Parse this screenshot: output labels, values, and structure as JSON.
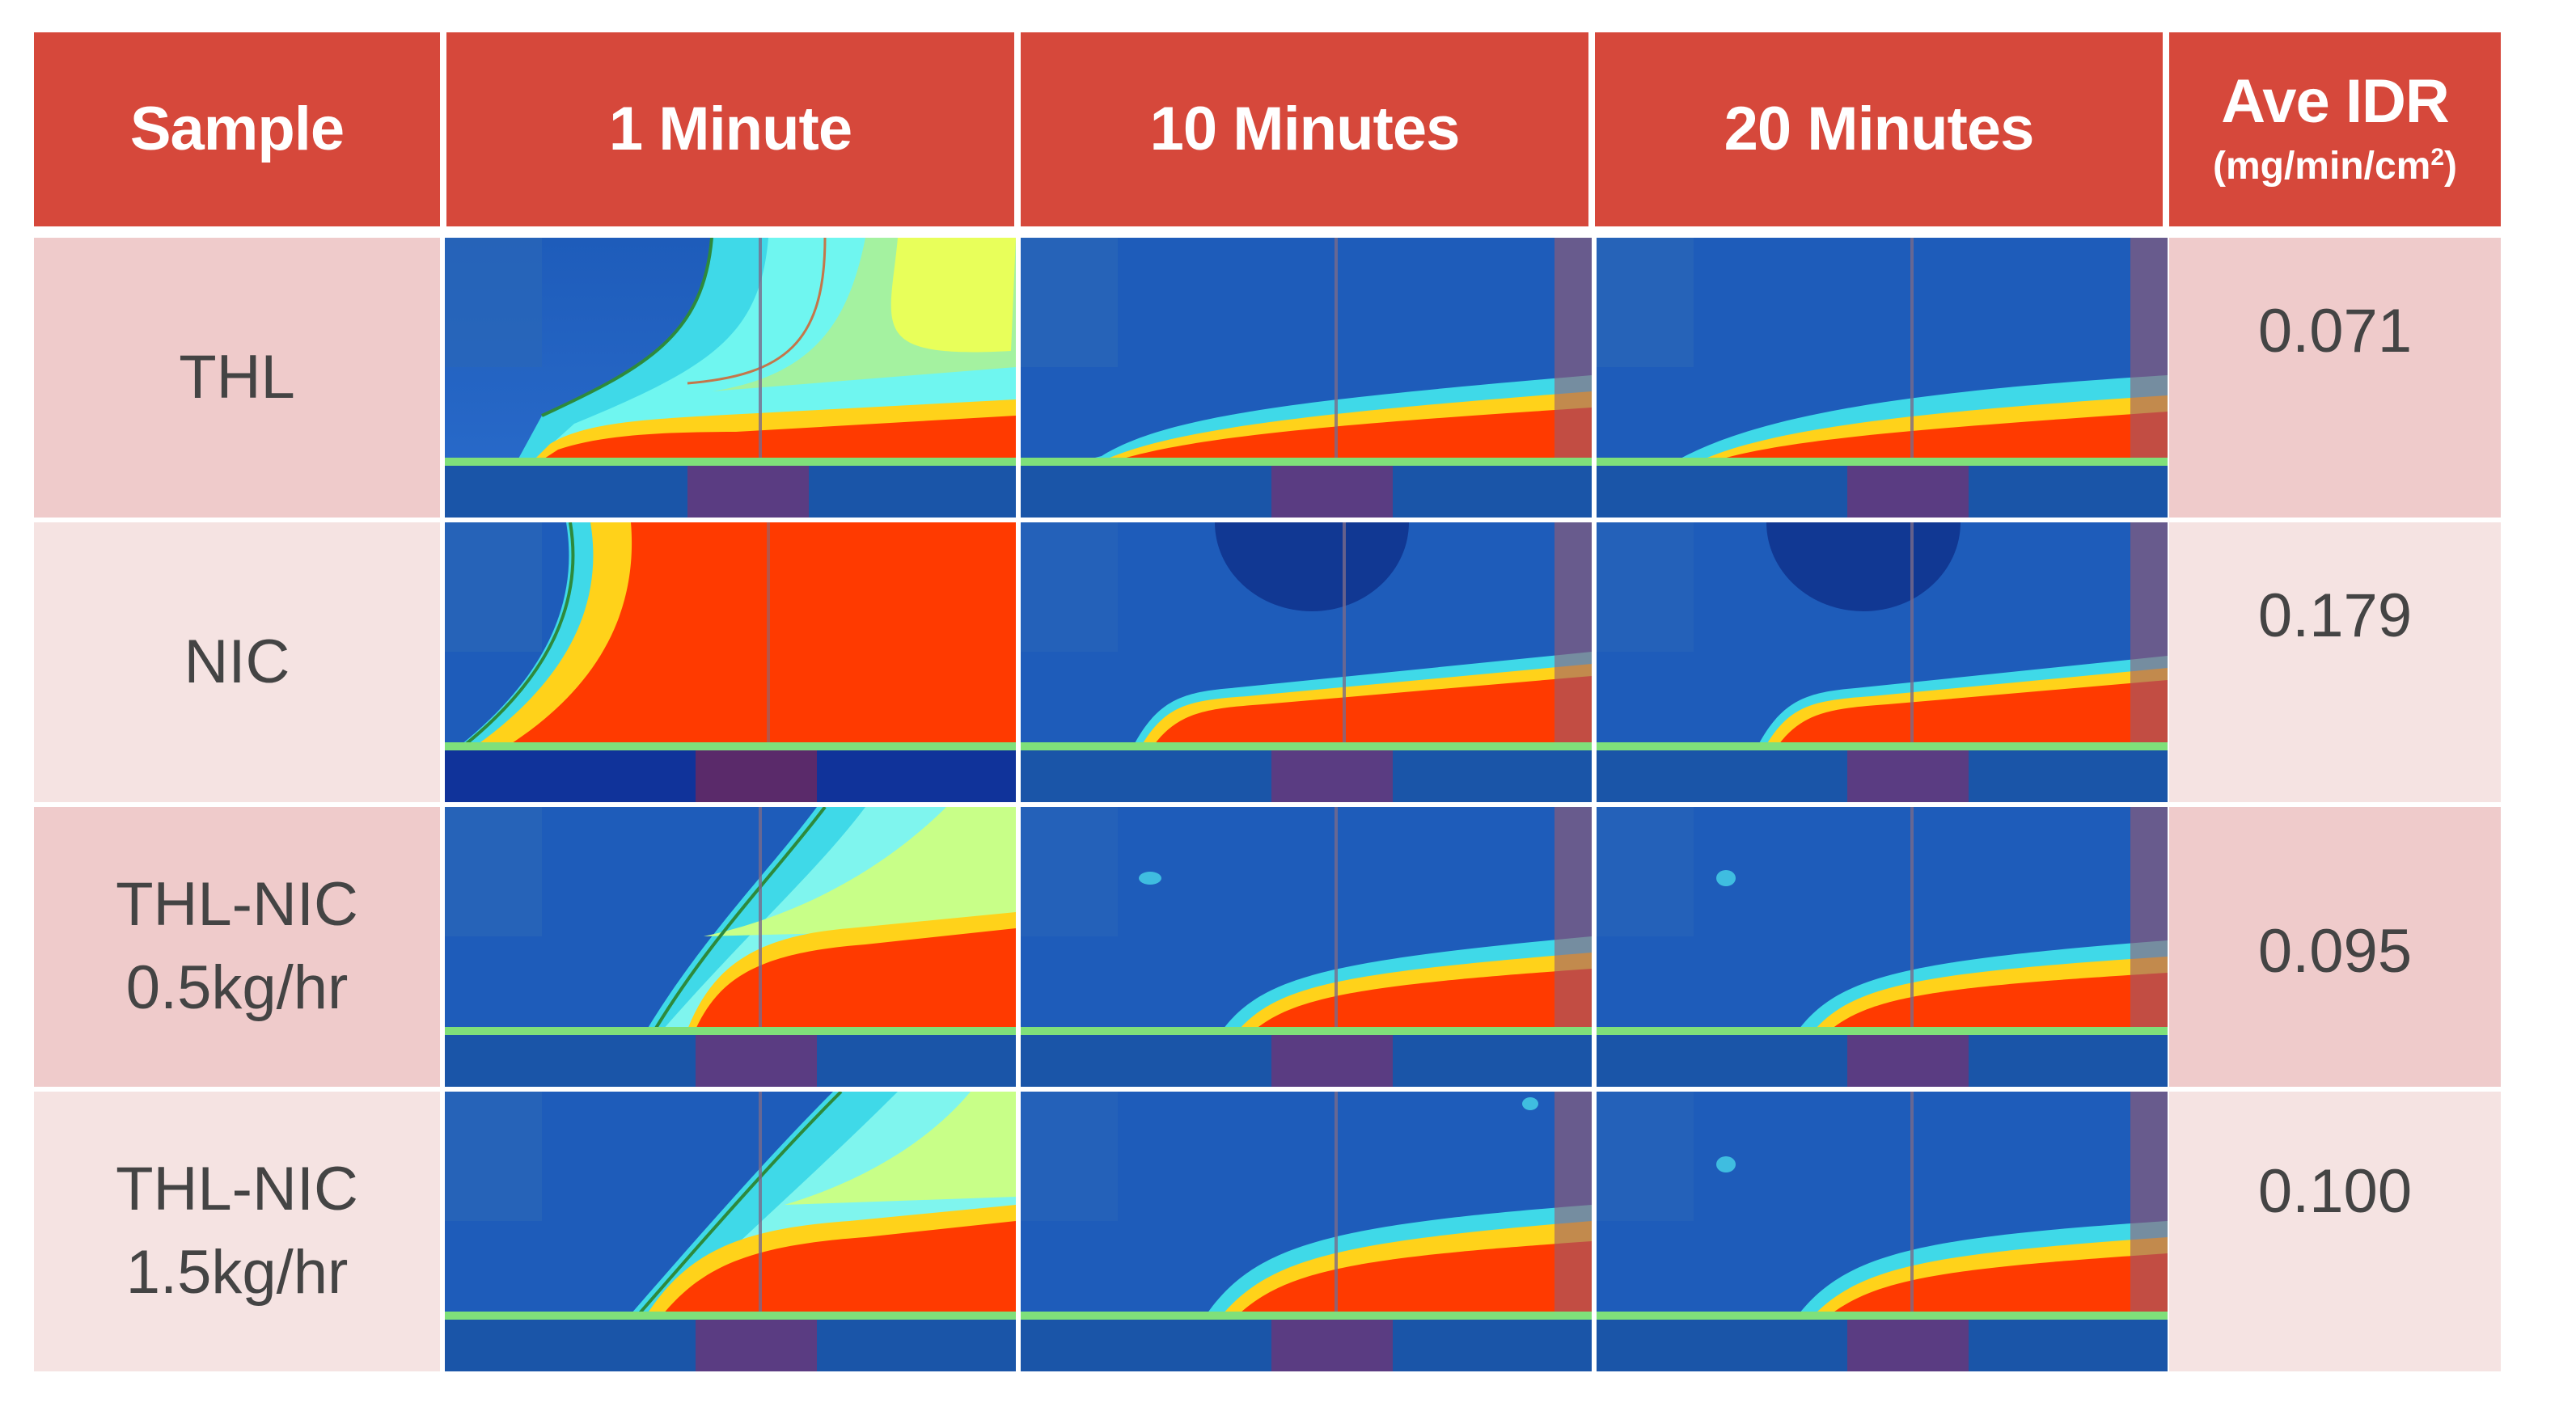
{
  "table": {
    "headers": [
      {
        "label": "Sample",
        "unit": ""
      },
      {
        "label": "1 Minute",
        "unit": ""
      },
      {
        "label": "10 Minutes",
        "unit": ""
      },
      {
        "label": "20 Minutes",
        "unit": ""
      },
      {
        "label": "Ave IDR",
        "unit": "(mg/min/cm",
        "unit_sup": "2",
        "unit_end": ")"
      }
    ],
    "rows": [
      {
        "sample_line1": "THL",
        "sample_line2": "",
        "ave_idr": "0.071"
      },
      {
        "sample_line1": "NIC",
        "sample_line2": "",
        "ave_idr": "0.179"
      },
      {
        "sample_line1": "THL-NIC",
        "sample_line2": "0.5kg/hr",
        "ave_idr": "0.095"
      },
      {
        "sample_line1": "THL-NIC",
        "sample_line2": "1.5kg/hr",
        "ave_idr": "0.100"
      }
    ],
    "colors": {
      "header_bg": "#d6483b",
      "row_shade_dark": "#efcbcb",
      "row_shade_light": "#f5e3e2",
      "heatmap_background": "#1f5fbf",
      "heatmap_hot": "#ff3a00"
    }
  }
}
